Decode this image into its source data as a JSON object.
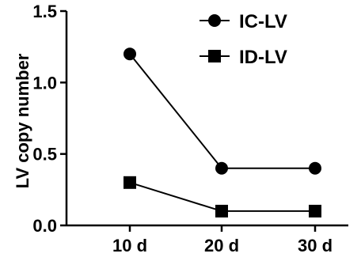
{
  "chart_data": {
    "type": "line",
    "categories": [
      "10 d",
      "20 d",
      "30 d"
    ],
    "series": [
      {
        "name": "IC-LV",
        "marker": "circle",
        "values": [
          1.2,
          0.4,
          0.4
        ]
      },
      {
        "name": "ID-LV",
        "marker": "square",
        "values": [
          0.3,
          0.1,
          0.1
        ]
      }
    ],
    "title": "",
    "xlabel": "",
    "ylabel": "LV copy number",
    "ylim": [
      0,
      1.5
    ],
    "yticks": [
      0.0,
      0.5,
      1.0,
      1.5
    ],
    "yticklabels": [
      "0.0",
      "0.5",
      "1.0",
      "1.5"
    ],
    "grid": false,
    "legend_position": "top-right",
    "colors": {
      "line": "#000000",
      "marker": "#000000"
    }
  }
}
